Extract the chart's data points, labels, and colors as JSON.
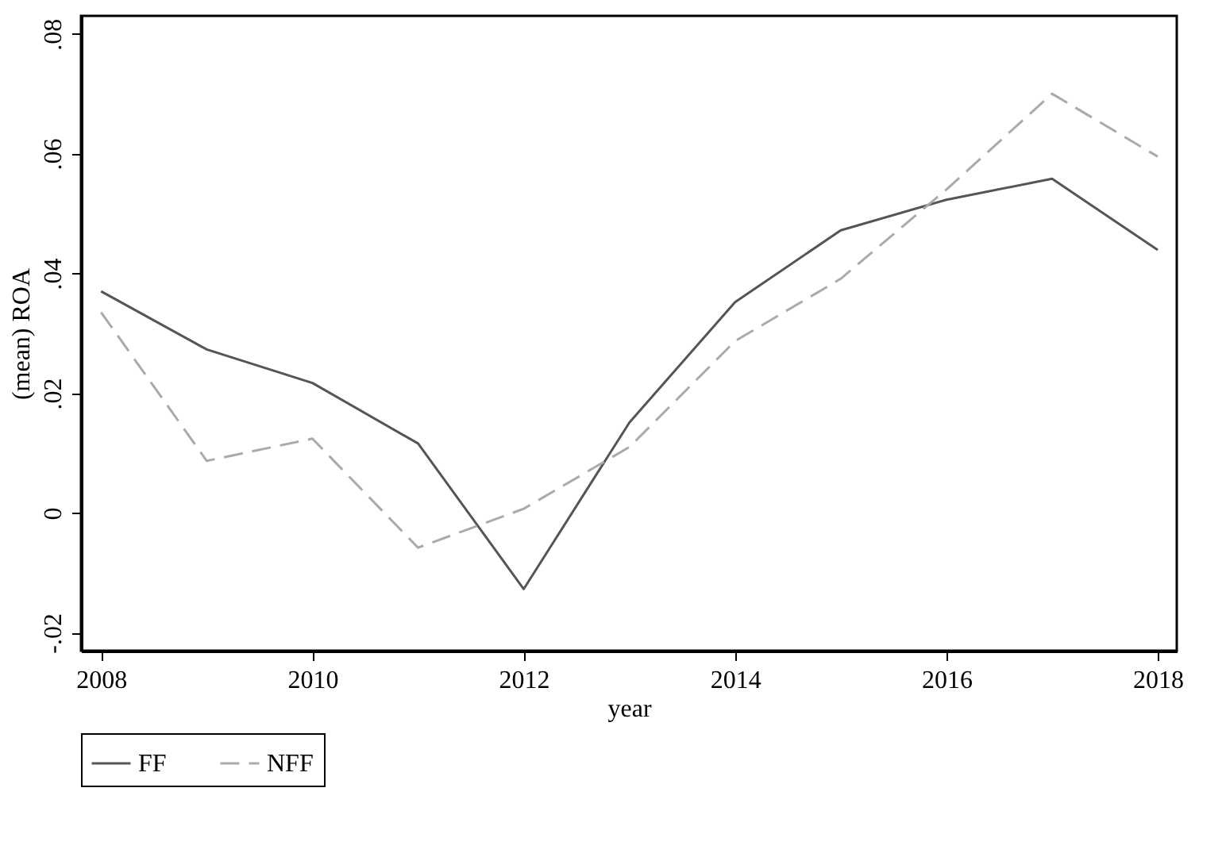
{
  "chart_data": {
    "type": "line",
    "xlabel": "year",
    "ylabel": "(mean) ROA",
    "x": [
      2008,
      2009,
      2010,
      2011,
      2012,
      2013,
      2014,
      2015,
      2016,
      2017,
      2018
    ],
    "series": [
      {
        "name": "FF",
        "color": "#555555",
        "line_style": "solid",
        "values": [
          0.037,
          0.0273,
          0.0217,
          0.0116,
          -0.0127,
          0.0151,
          0.0352,
          0.0472,
          0.0523,
          0.0558,
          0.0439
        ]
      },
      {
        "name": "NFF",
        "color": "#aaaaaa",
        "line_style": "dashed",
        "values": [
          0.0335,
          0.0087,
          0.0124,
          -0.0058,
          0.0007,
          0.011,
          0.0287,
          0.0391,
          0.054,
          0.07,
          0.0595
        ]
      }
    ],
    "xlim": [
      2007.81,
      2018.18
    ],
    "xticks": [
      2008,
      2010,
      2012,
      2014,
      2016,
      2018
    ],
    "ylim": [
      -0.023,
      0.083
    ],
    "yticks": [
      {
        "value": -0.02,
        "label": "-.02"
      },
      {
        "value": 0,
        "label": "0"
      },
      {
        "value": 0.02,
        "label": ".02"
      },
      {
        "value": 0.04,
        "label": ".04"
      },
      {
        "value": 0.06,
        "label": ".06"
      },
      {
        "value": 0.08,
        "label": ".08"
      }
    ],
    "grid": false,
    "legend": "bottom",
    "marker": "none"
  }
}
